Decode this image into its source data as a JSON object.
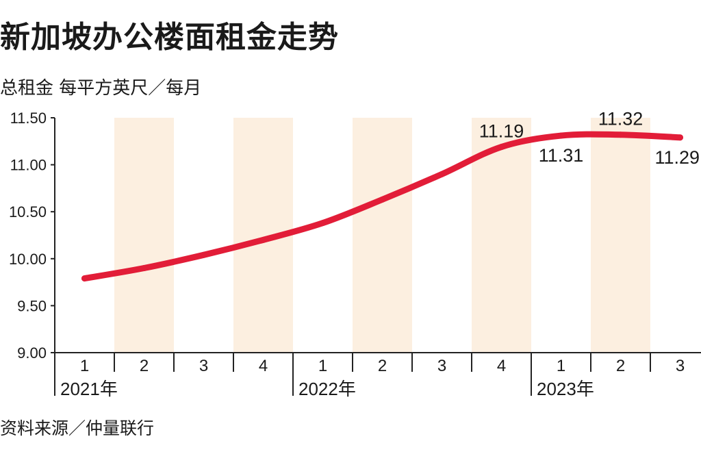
{
  "title": "新加坡办公楼面租金走势",
  "subtitle": "总租金 每平方英尺／每月",
  "source": "资料来源／仲量联行",
  "colors": {
    "line": "#e21d38",
    "band": "#fcefe0",
    "text": "#1a1a1a",
    "axis": "#222222"
  },
  "chart_data": {
    "type": "line",
    "ylim": [
      9.0,
      11.5
    ],
    "yticks": [
      "9.00",
      "9.50",
      "10.00",
      "10.50",
      "11.00",
      "11.50"
    ],
    "categories": [
      "1",
      "2",
      "3",
      "4",
      "1",
      "2",
      "3",
      "4",
      "1",
      "2",
      "3"
    ],
    "years": [
      {
        "label": "2021年",
        "start_index": 0
      },
      {
        "label": "2022年",
        "start_index": 4
      },
      {
        "label": "2023年",
        "start_index": 8
      }
    ],
    "shaded_quarters": [
      1,
      3,
      5,
      7,
      9
    ],
    "series": [
      {
        "values": [
          9.79,
          9.9,
          10.04,
          10.2,
          10.38,
          10.63,
          10.9,
          11.19,
          11.31,
          11.32,
          11.29
        ]
      }
    ],
    "data_labels": [
      {
        "index": 7,
        "text": "11.19",
        "position": "above"
      },
      {
        "index": 8,
        "text": "11.31",
        "position": "below"
      },
      {
        "index": 9,
        "text": "11.32",
        "position": "above"
      },
      {
        "index": 10,
        "text": "11.29",
        "position": "below"
      }
    ]
  }
}
